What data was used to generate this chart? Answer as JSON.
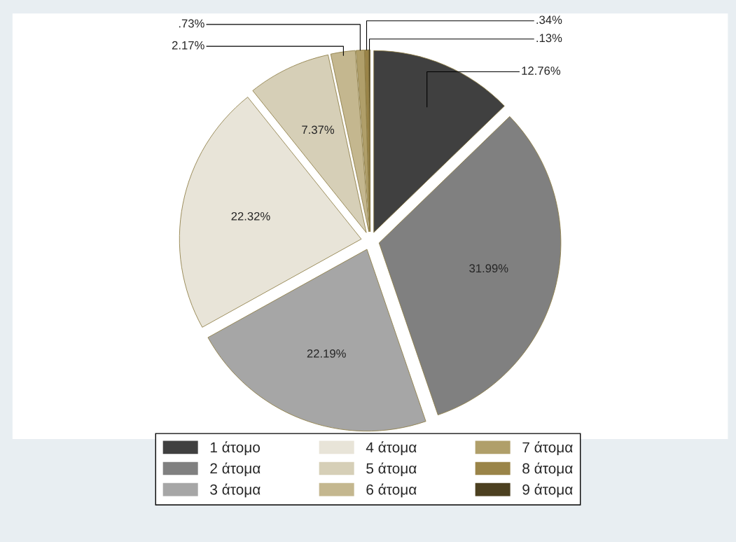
{
  "chart_data": {
    "type": "pie",
    "categories": [
      "1 άτομο",
      "2 άτομα",
      "3 άτομα",
      "4 άτομα",
      "5 άτομα",
      "6 άτομα",
      "7 άτομα",
      "8 άτομα",
      "9 άτομα"
    ],
    "values": [
      12.76,
      31.99,
      22.19,
      22.32,
      7.37,
      2.17,
      0.73,
      0.34,
      0.13
    ],
    "value_labels": [
      "12.76%",
      "31.99%",
      "22.19%",
      "22.32%",
      "7.37%",
      "2.17%",
      ".73%",
      ".34%",
      ".13%"
    ],
    "colors": [
      "#404040",
      "#808080",
      "#a6a6a6",
      "#e8e4d8",
      "#d6cfb7",
      "#c4b78f",
      "#b09f6a",
      "#9a8448",
      "#4c4020"
    ],
    "legend": "bottom"
  }
}
